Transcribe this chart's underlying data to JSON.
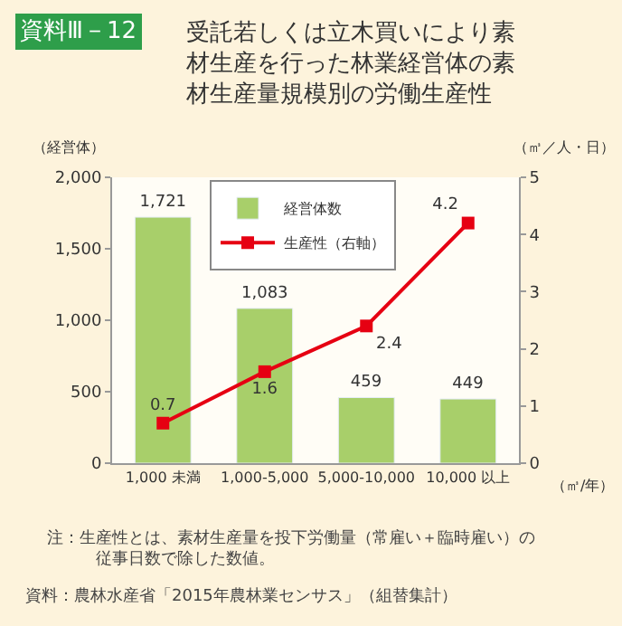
{
  "chart_data": {
    "type": "bar",
    "title": "受託若しくは立木買いにより素材生産を行った林業経営体の素材生産量規模別の労働生産性",
    "subtitle": "資料Ⅲ－12",
    "categories": [
      "1,000 未満",
      "1,000-5,000",
      "5,000-10,000",
      "10,000 以上"
    ],
    "xlabel": "（㎥/年）",
    "ylabel": "（経営体）",
    "y2label": "（㎥／人・日）",
    "series": [
      {
        "name": "経営体数",
        "color": "#a8cf6a",
        "values": [
          1721,
          1083,
          459,
          449
        ],
        "value_labels": [
          "1,721",
          "1,083",
          "459",
          "449"
        ]
      },
      {
        "name": "生産性（右軸）",
        "type": "line",
        "axis": "y2",
        "color": "#e60012",
        "marker": "square",
        "values": [
          0.7,
          1.6,
          2.4,
          4.2
        ],
        "value_labels": [
          "0.7",
          "1.6",
          "2.4",
          "4.2"
        ]
      }
    ],
    "ylim": [
      0,
      2000
    ],
    "yticks": [
      0,
      500,
      {
        "value": 1000,
        "label": "1,000"
      },
      {
        "value": 1500,
        "label": "1,500"
      },
      {
        "value": 2000,
        "label": "2,000"
      }
    ],
    "y2lim": [
      0,
      5
    ],
    "y2ticks": [
      0,
      1,
      2,
      3,
      4,
      5
    ],
    "grid": false,
    "legend": "top",
    "annotations": [
      "注：生産性とは、素材生産量を投下労働量（常雇い＋臨時雇い）の従事日数で除した数値。",
      "資料：農林水産省「2015年農林業センサス」（組替集計）"
    ]
  }
}
